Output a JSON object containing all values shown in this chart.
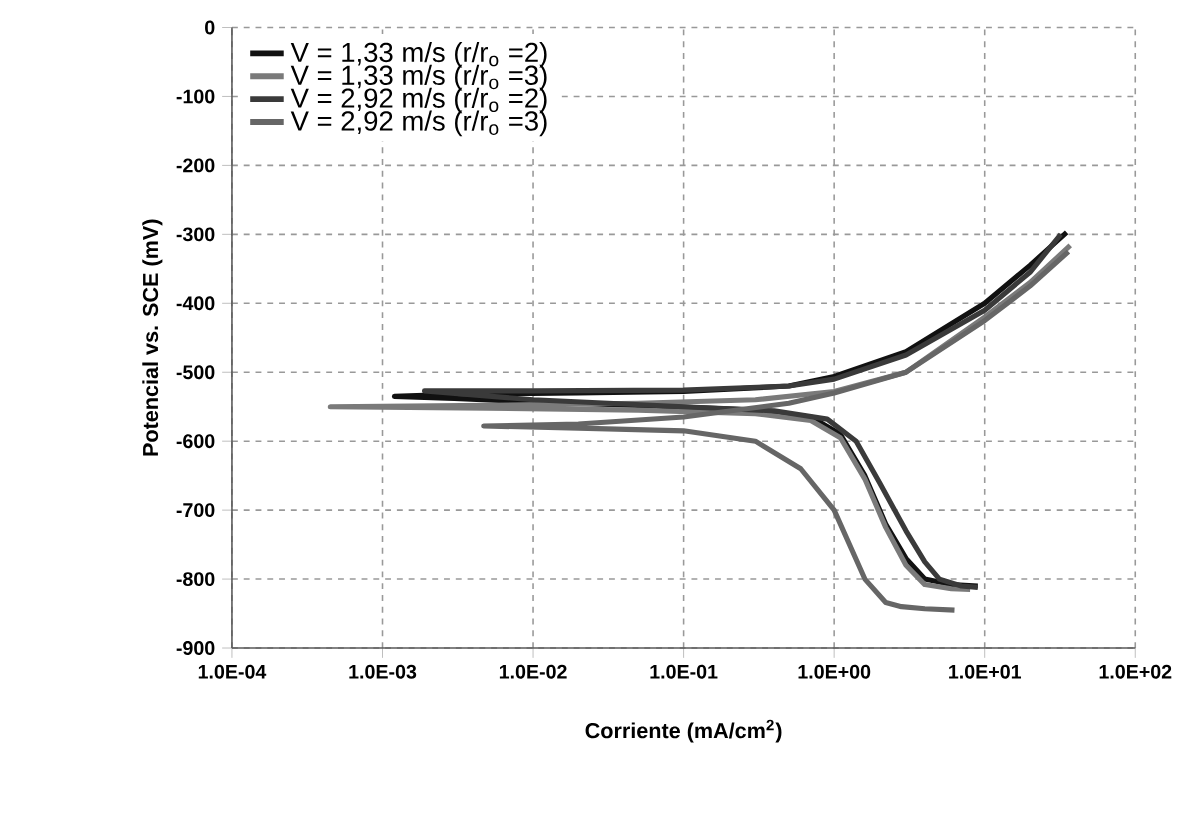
{
  "chart_data": {
    "type": "line",
    "xlabel": "Corriente (mA/cm$^{2}$)",
    "ylabel": "Potencial vs. SCE (mV)",
    "log": "x",
    "grid": true,
    "legend": "top left",
    "marker": "none",
    "line_style": "solid",
    "xlim": [
      0.0001,
      100
    ],
    "ylim": [
      -900,
      0
    ],
    "xticks": [
      {
        "value": 0.0001,
        "label": "1.0E-04"
      },
      {
        "value": 0.001,
        "label": "1.0E-03"
      },
      {
        "value": 0.01,
        "label": "1.0E-02"
      },
      {
        "value": 0.1,
        "label": "1.0E-01"
      },
      {
        "value": 1,
        "label": "1.0E+00"
      },
      {
        "value": 10,
        "label": "1.0E+01"
      },
      {
        "value": 100,
        "label": "1.0E+02"
      }
    ],
    "yticks": [
      0,
      -100,
      -200,
      -300,
      -400,
      -500,
      -600,
      -700,
      -800,
      -900
    ],
    "series": [
      {
        "name": "V = 1,33 m/s (r/r$_{o}$ =2)",
        "color": "#111111",
        "x": [
          9,
          6,
          4,
          3,
          2.2,
          1.6,
          1.1,
          0.7,
          0.3,
          0.05,
          0.01,
          0.003,
          0.0012,
          0.003,
          0.02,
          0.1,
          0.5,
          1,
          3,
          10,
          20,
          35
        ],
        "values": [
          -810,
          -808,
          -800,
          -770,
          -720,
          -650,
          -590,
          -565,
          -555,
          -548,
          -543,
          -538,
          -535,
          -532,
          -530,
          -528,
          -520,
          -506,
          -470,
          -400,
          -345,
          -297
        ]
      },
      {
        "name": "V = 1,33 m/s (r/r$_{o}$ =3)",
        "color": "#7a7a7a",
        "x": [
          8,
          6,
          4,
          3,
          2.2,
          1.6,
          1.1,
          0.7,
          0.3,
          0.05,
          0.005,
          0.00045,
          0.005,
          0.05,
          0.3,
          1,
          3,
          10,
          20,
          37
        ],
        "values": [
          -815,
          -814,
          -808,
          -780,
          -725,
          -655,
          -595,
          -570,
          -560,
          -555,
          -552,
          -550,
          -548,
          -545,
          -540,
          -528,
          -500,
          -420,
          -370,
          -316
        ]
      },
      {
        "name": "V = 2,92 m/s (r/r$_{o}$ =2)",
        "color": "#3a3a3a",
        "x": [
          9,
          7,
          5,
          4,
          3,
          2,
          1.4,
          0.9,
          0.4,
          0.1,
          0.01,
          0.0019,
          0.01,
          0.1,
          0.5,
          1,
          3,
          10,
          20,
          32
        ],
        "values": [
          -812,
          -810,
          -800,
          -775,
          -730,
          -660,
          -600,
          -568,
          -556,
          -550,
          -540,
          -527,
          -527,
          -526,
          -520,
          -510,
          -475,
          -410,
          -355,
          -300
        ]
      },
      {
        "name": "V = 2,92 m/s (r/r$_{o}$ =3)",
        "color": "#666666",
        "x": [
          6.3,
          4,
          2.8,
          2.2,
          1.6,
          1,
          0.6,
          0.3,
          0.1,
          0.02,
          0.0047,
          0.02,
          0.1,
          0.5,
          1,
          3,
          10,
          20,
          36
        ],
        "values": [
          -845,
          -843,
          -840,
          -834,
          -800,
          -700,
          -640,
          -600,
          -585,
          -581,
          -578,
          -575,
          -565,
          -545,
          -530,
          -500,
          -425,
          -375,
          -325
        ]
      }
    ]
  }
}
